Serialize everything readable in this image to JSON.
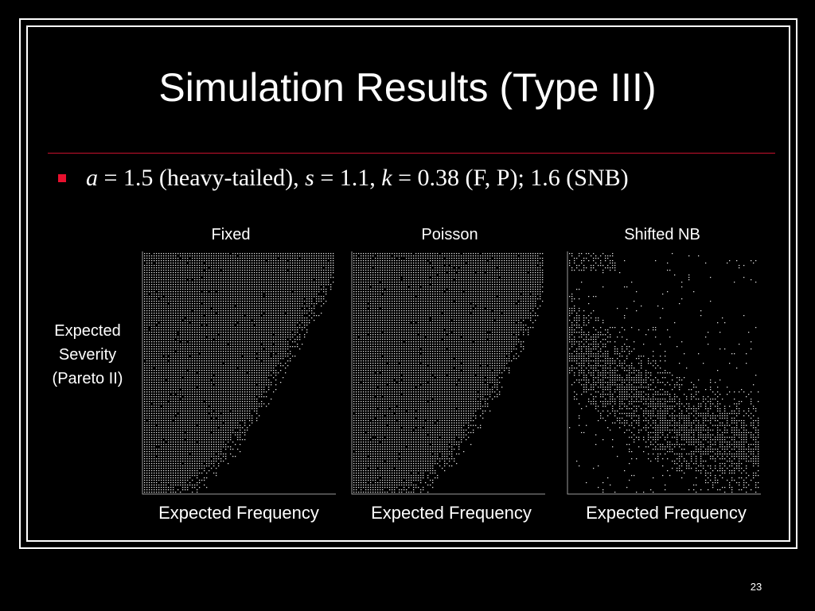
{
  "slide": {
    "title": "Simulation Results (Type III)",
    "page_number": "23",
    "accent_color": "#c8102e",
    "bullet_color": "#e8102e"
  },
  "bullet": {
    "a_var": "a",
    "a_text": " = 1.5 (heavy-tailed),  ",
    "s_var": "s",
    "s_text": " = 1.1,  ",
    "k_var": "k",
    "k_text": " = 0.38 (F, P); 1.6 (SNB)"
  },
  "chart_data": [
    {
      "type": "scatter",
      "title": "Fixed",
      "xlabel": "Expected Frequency",
      "ylabel": "Expected\nSeverity\n(Pareto II)",
      "point_color": "#e6e6e6",
      "description_boundary": [
        [
          0.0,
          0.0
        ],
        [
          0.1,
          0.02
        ],
        [
          0.2,
          0.06
        ],
        [
          0.3,
          0.12
        ],
        [
          0.4,
          0.2
        ],
        [
          0.5,
          0.3
        ],
        [
          0.6,
          0.42
        ],
        [
          0.7,
          0.56
        ],
        [
          0.8,
          0.7
        ],
        [
          0.9,
          0.84
        ],
        [
          1.0,
          0.96
        ]
      ]
    },
    {
      "type": "scatter",
      "title": "Poisson",
      "xlabel": "Expected Frequency",
      "ylabel": "",
      "point_color": "#e6e6e6",
      "description_boundary": [
        [
          0.0,
          0.0
        ],
        [
          0.1,
          0.01
        ],
        [
          0.2,
          0.03
        ],
        [
          0.3,
          0.07
        ],
        [
          0.4,
          0.13
        ],
        [
          0.5,
          0.21
        ],
        [
          0.6,
          0.31
        ],
        [
          0.7,
          0.44
        ],
        [
          0.8,
          0.58
        ],
        [
          0.9,
          0.74
        ],
        [
          1.0,
          0.9
        ]
      ]
    },
    {
      "type": "scatter",
      "title": "Shifted NB",
      "xlabel": "Expected Frequency",
      "ylabel": "",
      "point_color": "#e6e6e6",
      "description_boundary": [
        [
          0.0,
          0.55
        ],
        [
          0.1,
          0.45
        ],
        [
          0.2,
          0.38
        ],
        [
          0.3,
          0.31
        ],
        [
          0.4,
          0.25
        ],
        [
          0.5,
          0.2
        ],
        [
          0.6,
          0.16
        ],
        [
          0.7,
          0.12
        ],
        [
          0.8,
          0.1
        ],
        [
          0.9,
          0.08
        ],
        [
          1.0,
          0.07
        ]
      ]
    }
  ]
}
